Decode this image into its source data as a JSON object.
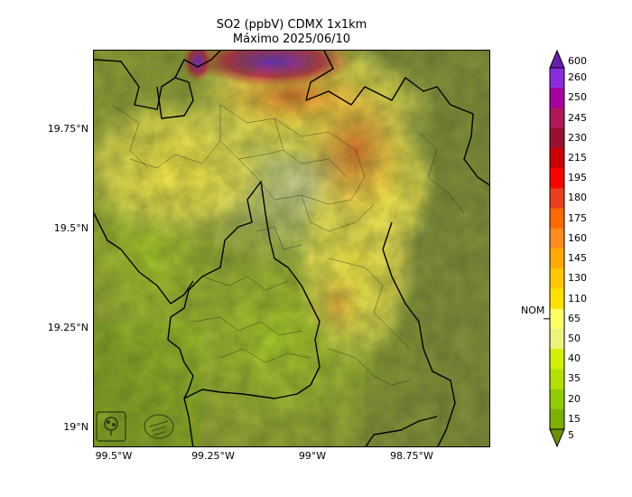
{
  "title": {
    "line1": "SO2 (ppbV) CDMX 1x1km",
    "line2": "Máximo 2025/06/10"
  },
  "map": {
    "lat_ticks": [
      "19.75°N",
      "19.5°N",
      "19.25°N",
      "19°N"
    ],
    "lon_ticks": [
      "99.5°W",
      "99.25°W",
      "99°W",
      "98.75°W"
    ]
  },
  "colorbar": {
    "levels": [
      "600",
      "260",
      "250",
      "245",
      "230",
      "215",
      "195",
      "180",
      "175",
      "160",
      "145",
      "130",
      "110",
      "65",
      "50",
      "40",
      "35",
      "20",
      "15",
      "5"
    ],
    "colors": [
      "#6a1fb0",
      "#8a2be2",
      "#a500a0",
      "#b0185a",
      "#9a1030",
      "#cc0000",
      "#ff0000",
      "#e8401a",
      "#ff6a00",
      "#ff8c1a",
      "#ffaa00",
      "#ffc800",
      "#ffe000",
      "#ffff66",
      "#eef27a",
      "#d2f000",
      "#b4e000",
      "#8fcc00",
      "#7db000",
      "#6a9400"
    ],
    "nom_label": "NOM"
  },
  "colors": {
    "terrain_base": "#8c9a3a",
    "high_so2": "#7a2bd6",
    "boundary": "#000000"
  }
}
